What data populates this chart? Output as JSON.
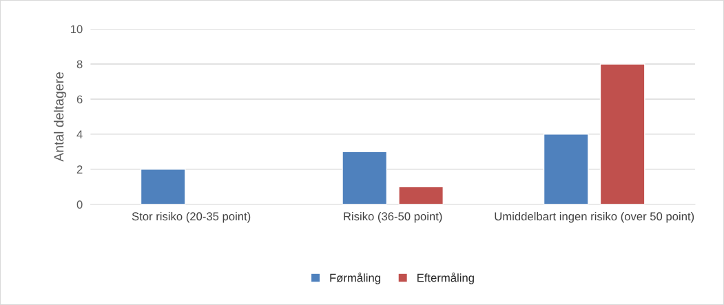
{
  "chart_data": {
    "type": "bar",
    "ylabel": "Antal deltagere",
    "categories": [
      "Stor risiko (20-35 point)",
      "Risiko (36-50 point)",
      "Umiddelbart ingen risiko (over 50 point)"
    ],
    "series": [
      {
        "name": "Førmåling",
        "color": "#4f81bd",
        "values": [
          2,
          3,
          4
        ]
      },
      {
        "name": "Eftermåling",
        "color": "#c0504d",
        "values": [
          null,
          1,
          8
        ]
      }
    ],
    "ylim": [
      0,
      10
    ],
    "yticks": [
      0,
      2,
      4,
      6,
      8,
      10
    ],
    "grid": "y",
    "legend": "bottom"
  }
}
